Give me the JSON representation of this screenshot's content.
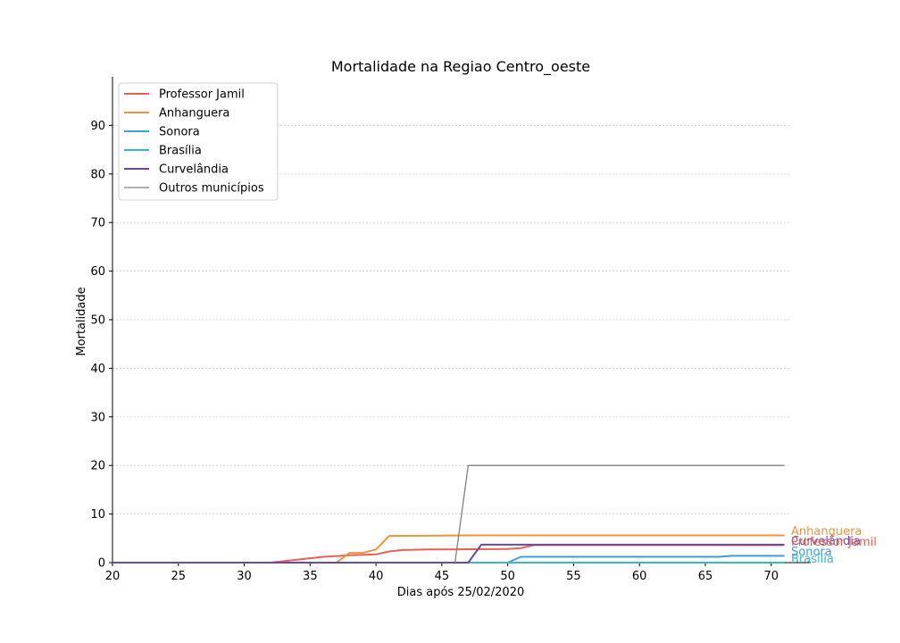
{
  "chart_data": {
    "type": "line",
    "title": "Mortalidade na Regiao Centro_oeste",
    "xlabel": "Dias após 25/02/2020",
    "ylabel": "Mortalidade",
    "xlim": [
      20,
      73
    ],
    "ylim": [
      0,
      100
    ],
    "xticks": [
      20,
      25,
      30,
      35,
      40,
      45,
      50,
      55,
      60,
      65,
      70
    ],
    "yticks": [
      0,
      10,
      20,
      30,
      40,
      50,
      60,
      70,
      80,
      90
    ],
    "grid": "horizontal",
    "legend_position": "top-left",
    "series": [
      {
        "name": "Professor Jamil",
        "color": "#e8605a",
        "width": 2,
        "points": [
          [
            20,
            0
          ],
          [
            32,
            0
          ],
          [
            34,
            0.6
          ],
          [
            36,
            1.2
          ],
          [
            38,
            1.5
          ],
          [
            40,
            1.7
          ],
          [
            41,
            2.3
          ],
          [
            42,
            2.6
          ],
          [
            44,
            2.7
          ],
          [
            50,
            2.8
          ],
          [
            51,
            3.0
          ],
          [
            52,
            3.6
          ],
          [
            71,
            3.6
          ]
        ]
      },
      {
        "name": "Anhanguera",
        "color": "#f2933a",
        "width": 2,
        "points": [
          [
            20,
            0
          ],
          [
            37,
            0
          ],
          [
            38,
            2.0
          ],
          [
            39,
            2.0
          ],
          [
            40,
            2.7
          ],
          [
            41,
            5.5
          ],
          [
            47,
            5.6
          ],
          [
            71,
            5.6
          ]
        ]
      },
      {
        "name": "Sonora",
        "color": "#3a9ee0",
        "width": 2,
        "points": [
          [
            20,
            0
          ],
          [
            50,
            0
          ],
          [
            51,
            1.2
          ],
          [
            66,
            1.2
          ],
          [
            67,
            1.4
          ],
          [
            71,
            1.4
          ]
        ]
      },
      {
        "name": "Brasília",
        "color": "#3bb8c2",
        "width": 2,
        "points": [
          [
            20,
            0
          ],
          [
            71,
            0
          ]
        ]
      },
      {
        "name": "Curvelândia",
        "color": "#6a4a9e",
        "width": 2,
        "points": [
          [
            20,
            0
          ],
          [
            47,
            0
          ],
          [
            48,
            3.7
          ],
          [
            71,
            3.7
          ]
        ]
      },
      {
        "name": "Outros municípios",
        "color": "#808080",
        "width": 1.3,
        "points": [
          [
            46,
            0
          ],
          [
            47,
            20
          ],
          [
            71,
            20
          ]
        ]
      }
    ],
    "end_labels": [
      {
        "text": "Anhanguera",
        "color": "#f2933a",
        "y": 5.6
      },
      {
        "text": "Curvelândia",
        "color": "#6a4a9e",
        "y": 3.7
      },
      {
        "text": "Professor Jamil",
        "color": "#e8605a",
        "y": 3.3
      },
      {
        "text": "Sonora",
        "color": "#3a9ee0",
        "y": 1.4
      },
      {
        "text": "Brasília",
        "color": "#3bb8c2",
        "y": 0
      }
    ]
  }
}
